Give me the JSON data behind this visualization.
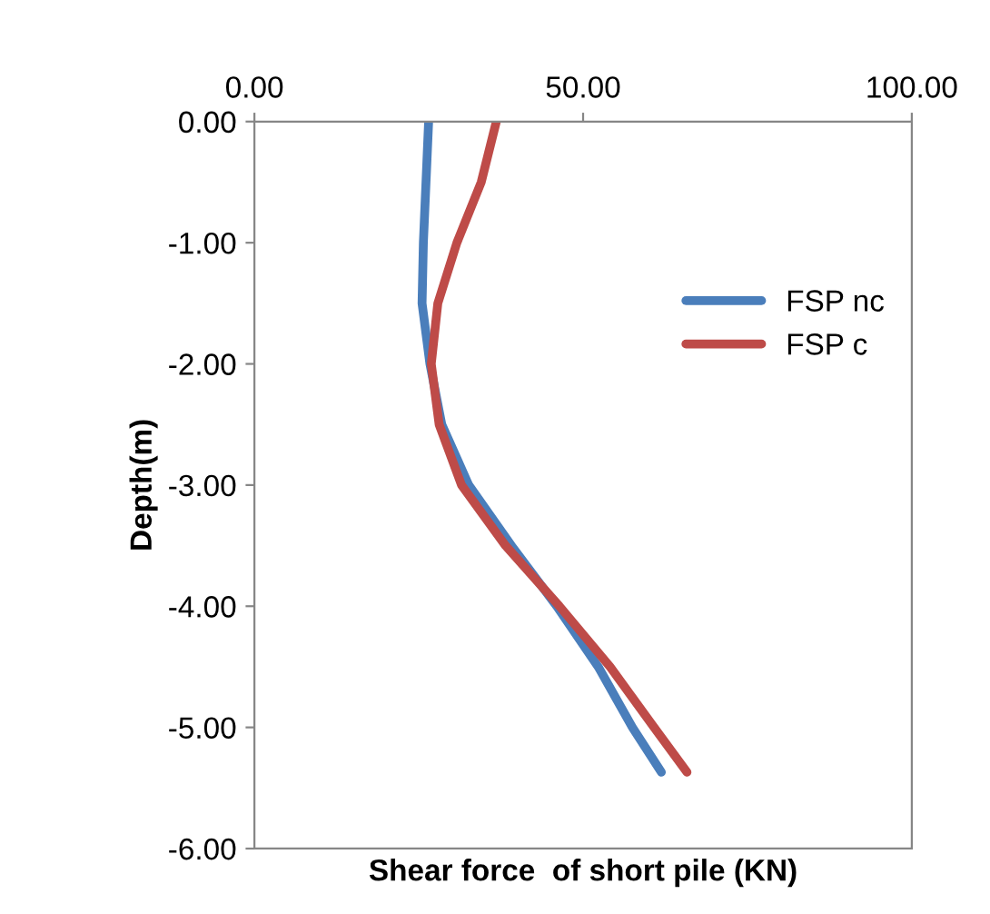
{
  "chart_data": {
    "type": "line",
    "xlabel": "Shear force  of short pile (KN)",
    "ylabel": "Depth(m)",
    "xlim": [
      0,
      100
    ],
    "xticks": [
      {
        "value": 0,
        "label": "0.00"
      },
      {
        "value": 50,
        "label": "50.00"
      },
      {
        "value": 100,
        "label": "100.00"
      }
    ],
    "ylim": [
      -6,
      0
    ],
    "yticks": [
      {
        "value": -6,
        "label": "-6.00"
      },
      {
        "value": -5,
        "label": "-5.00"
      },
      {
        "value": -4,
        "label": "-4.00"
      },
      {
        "value": -3,
        "label": "-3.00"
      },
      {
        "value": -2,
        "label": "-2.00"
      },
      {
        "value": -1,
        "label": "-1.00"
      },
      {
        "value": 0,
        "label": "0.00"
      }
    ],
    "grid": false,
    "legend": "right",
    "marker": "none",
    "line_style": "solid",
    "series": [
      {
        "name": "FSP nc",
        "color": "#4a7ebb",
        "x": [
          26.5,
          25.7,
          25.5,
          26.7,
          28.5,
          32.6,
          39.1,
          46,
          52.3,
          57.5,
          61.9
        ],
        "values": [
          0,
          -1,
          -1.5,
          -2,
          -2.5,
          -3,
          -3.5,
          -4,
          -4.5,
          -5,
          -5.37
        ]
      },
      {
        "name": "FSP c",
        "color": "#be4b48",
        "x": [
          36.8,
          34.5,
          30.8,
          27.9,
          26.9,
          28.1,
          31.5,
          38.2,
          46.4,
          54.1,
          60.8,
          65.8
        ],
        "values": [
          0,
          -0.5,
          -1,
          -1.5,
          -2,
          -2.5,
          -3,
          -3.5,
          -4,
          -4.5,
          -5,
          -5.37
        ]
      }
    ]
  }
}
